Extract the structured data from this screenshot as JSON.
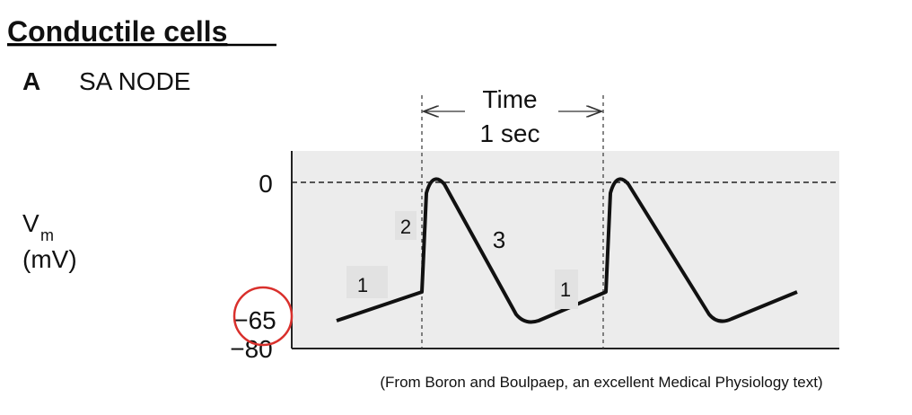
{
  "header": {
    "title": "Conductile cells"
  },
  "panel": {
    "letter": "A",
    "title": "SA NODE"
  },
  "time_scale": {
    "label": "Time",
    "duration": "1 sec"
  },
  "y_axis": {
    "symbol": "V",
    "subscript": "m",
    "unit": "(mV)",
    "ticks": [
      "0",
      "−65",
      "−80"
    ]
  },
  "phases": [
    "2",
    "3",
    "1",
    "1"
  ],
  "caption": "(From Boron and Boulpaep, an excellent Medical Physiology text)"
}
